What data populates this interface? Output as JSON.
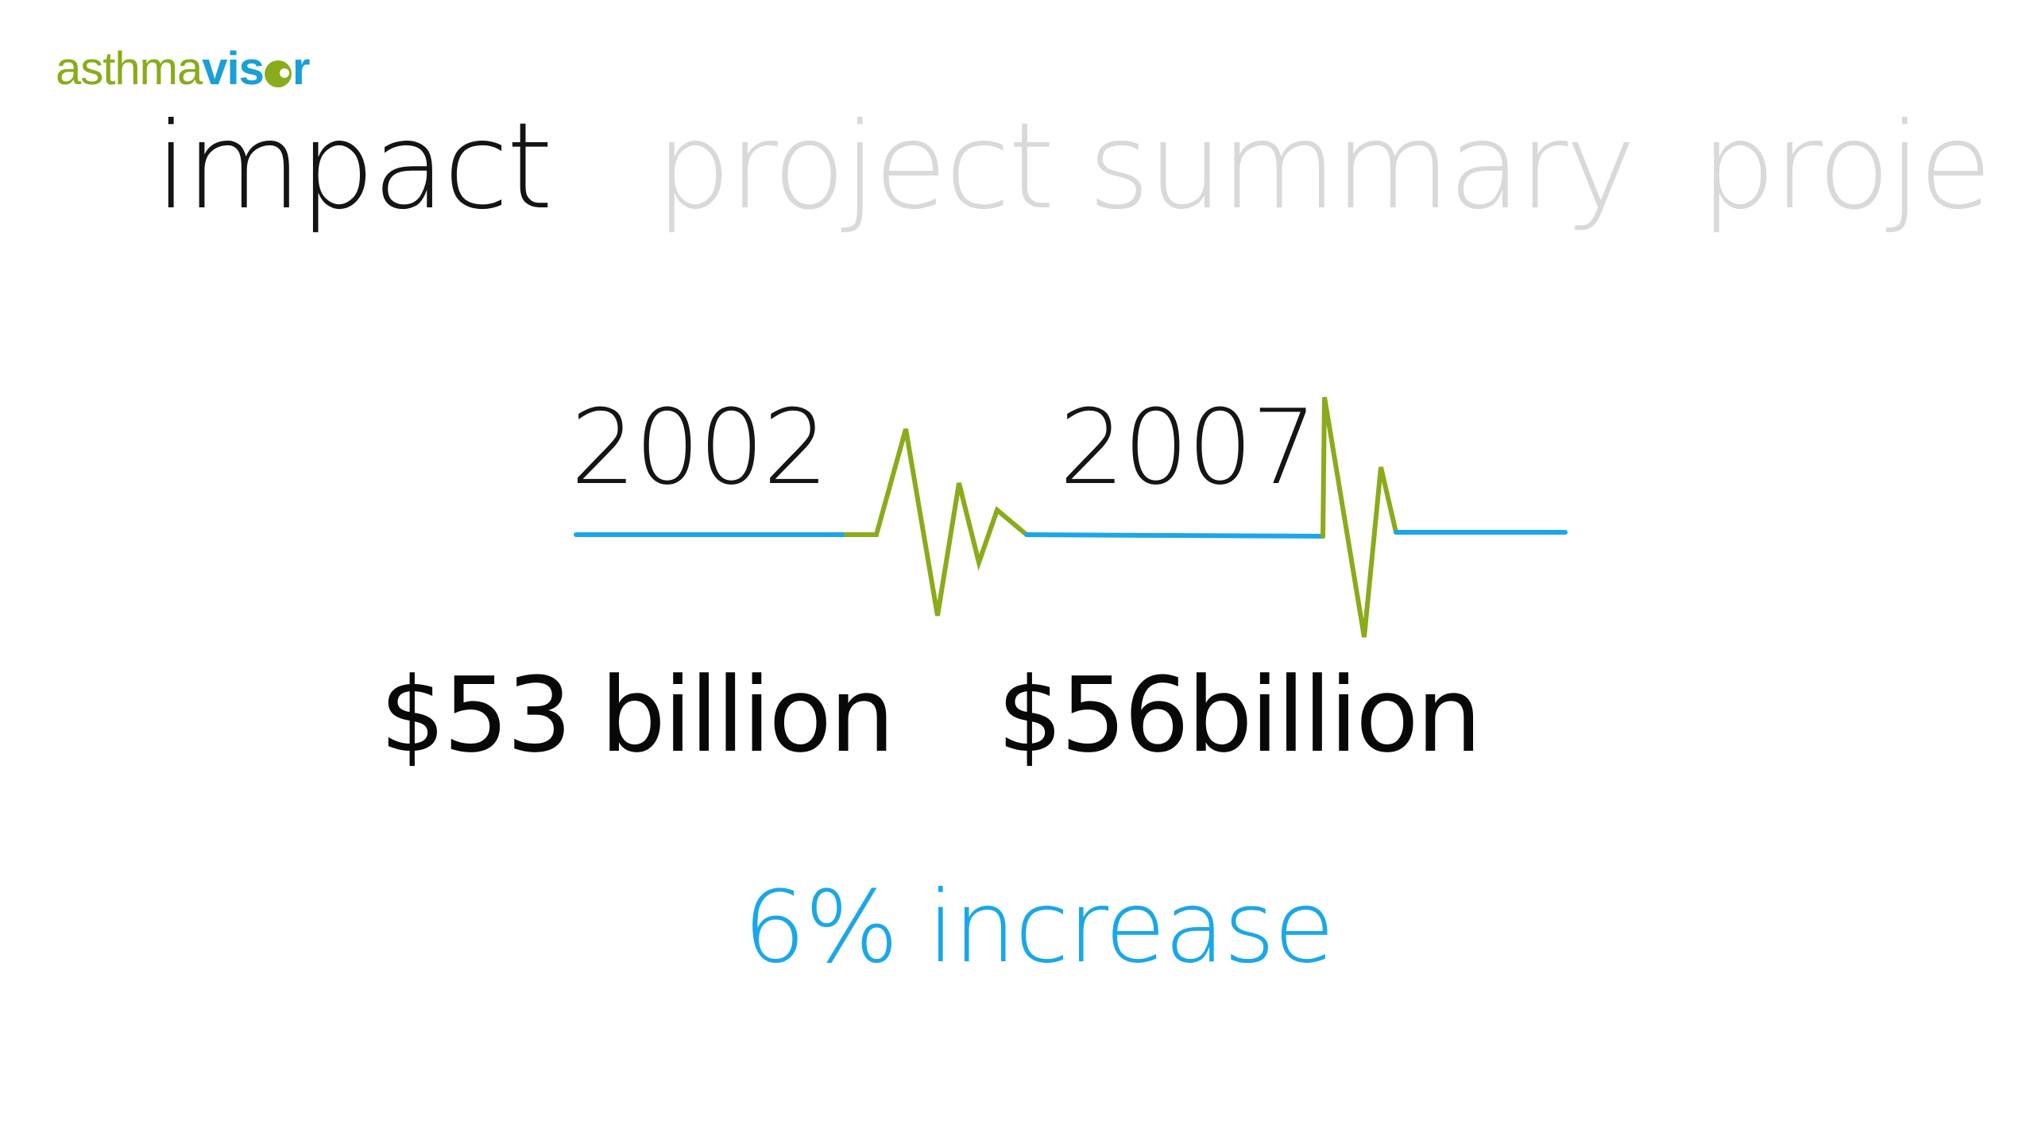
{
  "logo": {
    "part_a": "asthma",
    "part_b": "vis",
    "part_c": "r"
  },
  "tabs": [
    {
      "label": "impact",
      "active": true
    },
    {
      "label": "project summary",
      "active": false
    },
    {
      "label": "proje",
      "active": false
    }
  ],
  "timeline": {
    "year_1": "2002",
    "year_2": "2007",
    "amount_1": "$53 billion",
    "amount_2": "$56billion",
    "summary": "6% increase"
  },
  "colors": {
    "line_blue": "#1aa7e8",
    "pulse_green": "#8aab1a",
    "text_dark": "#141414",
    "tab_inactive": "#d9d9d9"
  }
}
